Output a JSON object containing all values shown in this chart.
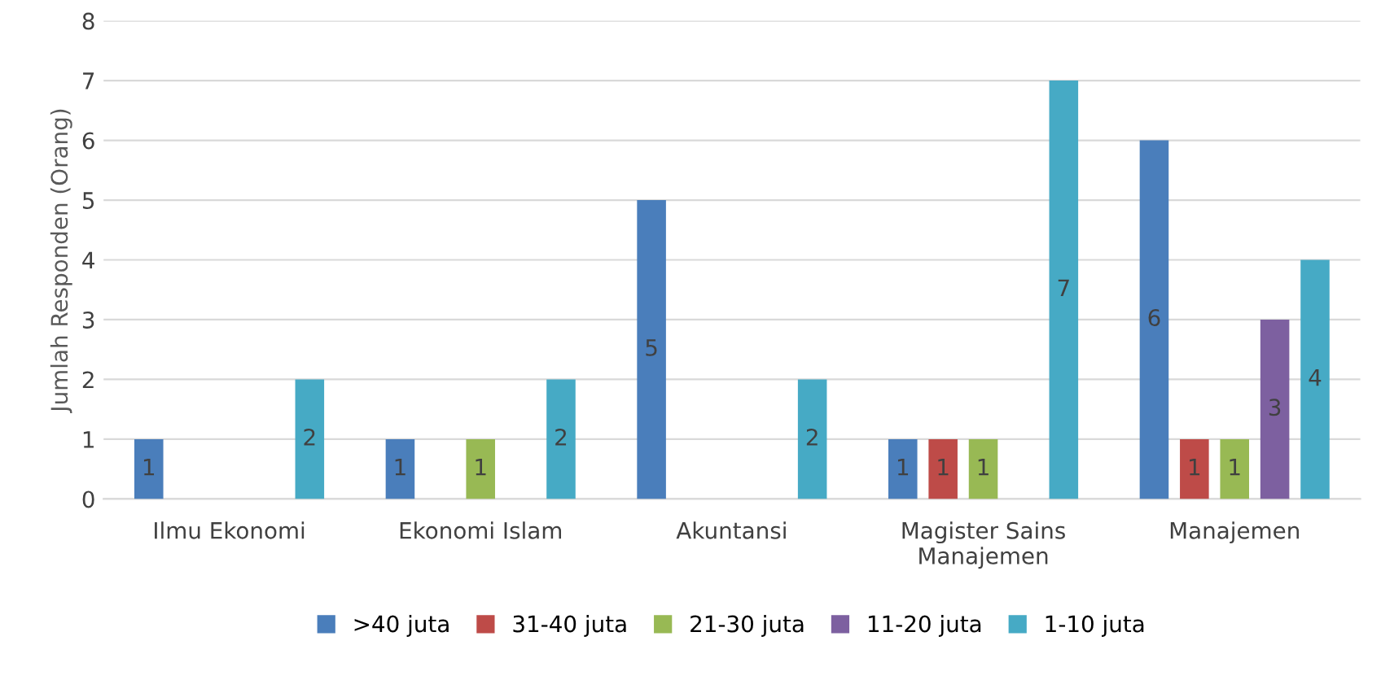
{
  "chart_data": {
    "type": "bar",
    "ylabel": "Jumlah Responden (Orang)",
    "categories": [
      "Ilmu Ekonomi",
      "Ekonomi Islam",
      "Akuntansi",
      "Magister Sains\nManajemen",
      "Manajemen"
    ],
    "series": [
      {
        "name": ">40 juta",
        "color": "#4a7ebb",
        "values": [
          1,
          1,
          5,
          1,
          6
        ]
      },
      {
        "name": "31-40 juta",
        "color": "#be4b48",
        "values": [
          null,
          null,
          null,
          1,
          1
        ]
      },
      {
        "name": "21-30 juta",
        "color": "#98b954",
        "values": [
          null,
          1,
          null,
          1,
          1
        ]
      },
      {
        "name": "11-20 juta",
        "color": "#7d60a0",
        "values": [
          null,
          null,
          null,
          null,
          3
        ]
      },
      {
        "name": "1-10 juta",
        "color": "#46aac5",
        "values": [
          2,
          2,
          2,
          7,
          4
        ]
      }
    ],
    "ylim": [
      0,
      8
    ],
    "yticks": [
      0,
      1,
      2,
      3,
      4,
      5,
      6,
      7,
      8
    ],
    "grid": "y",
    "legend": "bottom",
    "data_labels": true
  }
}
